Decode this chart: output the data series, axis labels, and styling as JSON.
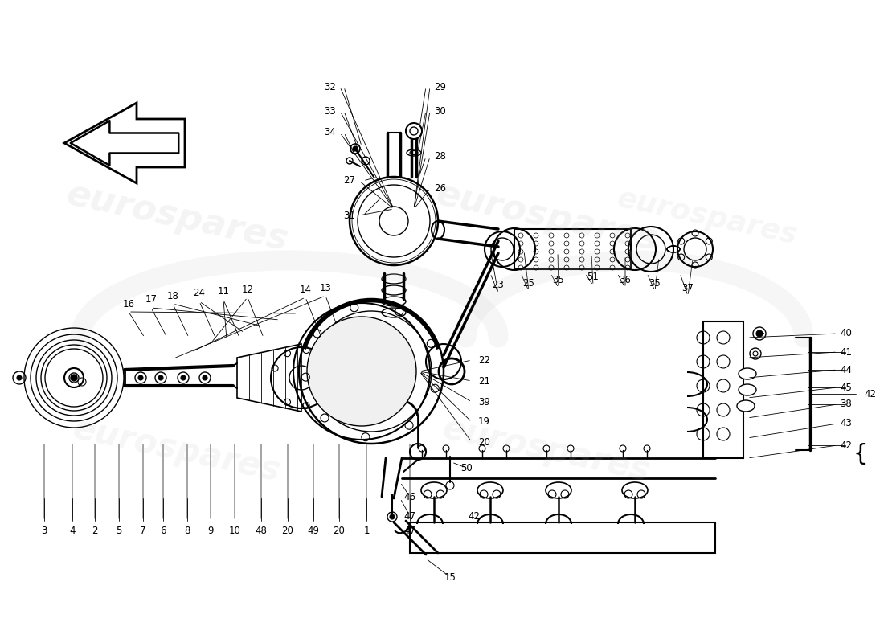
{
  "bg": "#ffffff",
  "wm": "eurospares",
  "wm_color": "#b8b8b8",
  "fig_w": 11.0,
  "fig_h": 8.0,
  "dpi": 100,
  "bottom_nums": [
    [
      "3",
      55,
      660
    ],
    [
      "4",
      90,
      660
    ],
    [
      "2",
      118,
      660
    ],
    [
      "5",
      148,
      660
    ],
    [
      "7",
      178,
      660
    ],
    [
      "6",
      203,
      660
    ],
    [
      "8",
      233,
      660
    ],
    [
      "9",
      262,
      660
    ],
    [
      "10",
      292,
      660
    ],
    [
      "48",
      325,
      660
    ],
    [
      "20",
      358,
      660
    ],
    [
      "49",
      390,
      660
    ],
    [
      "20",
      422,
      660
    ],
    [
      "1",
      456,
      660
    ],
    [
      "47",
      510,
      660
    ]
  ],
  "right_nums": [
    [
      "40",
      1060,
      415
    ],
    [
      "41",
      1060,
      438
    ],
    [
      "44",
      1060,
      460
    ],
    [
      "45",
      1060,
      482
    ],
    [
      "38",
      1060,
      503
    ],
    [
      "43",
      1060,
      527
    ],
    [
      "42",
      1060,
      554
    ]
  ],
  "top_nums_left": [
    [
      "32",
      418,
      108
    ],
    [
      "33",
      418,
      138
    ],
    [
      "34",
      418,
      165
    ],
    [
      "27",
      442,
      225
    ],
    [
      "31",
      442,
      268
    ]
  ],
  "top_nums_right": [
    [
      "29",
      540,
      108
    ],
    [
      "30",
      540,
      138
    ],
    [
      "28",
      540,
      195
    ],
    [
      "26",
      540,
      235
    ]
  ],
  "mid_left_nums": [
    [
      "16",
      160,
      378
    ],
    [
      "17",
      188,
      373
    ],
    [
      "18",
      215,
      368
    ],
    [
      "24",
      248,
      365
    ],
    [
      "11",
      278,
      363
    ],
    [
      "12",
      308,
      360
    ],
    [
      "14",
      380,
      360
    ],
    [
      "13",
      405,
      358
    ]
  ],
  "mid_right_nums": [
    [
      "23",
      620,
      355
    ],
    [
      "25",
      658,
      352
    ],
    [
      "35",
      695,
      348
    ],
    [
      "51",
      738,
      345
    ],
    [
      "36",
      778,
      348
    ],
    [
      "35",
      815,
      352
    ],
    [
      "37",
      856,
      358
    ]
  ],
  "lower_nums": [
    [
      "22",
      595,
      448
    ],
    [
      "21",
      595,
      474
    ],
    [
      "39",
      595,
      500
    ],
    [
      "19",
      595,
      525
    ],
    [
      "20",
      595,
      550
    ]
  ],
  "bot_mid_nums": [
    [
      "50",
      580,
      582
    ],
    [
      "46",
      510,
      618
    ],
    [
      "47",
      510,
      642
    ],
    [
      "42",
      590,
      642
    ],
    [
      "15",
      560,
      718
    ]
  ]
}
